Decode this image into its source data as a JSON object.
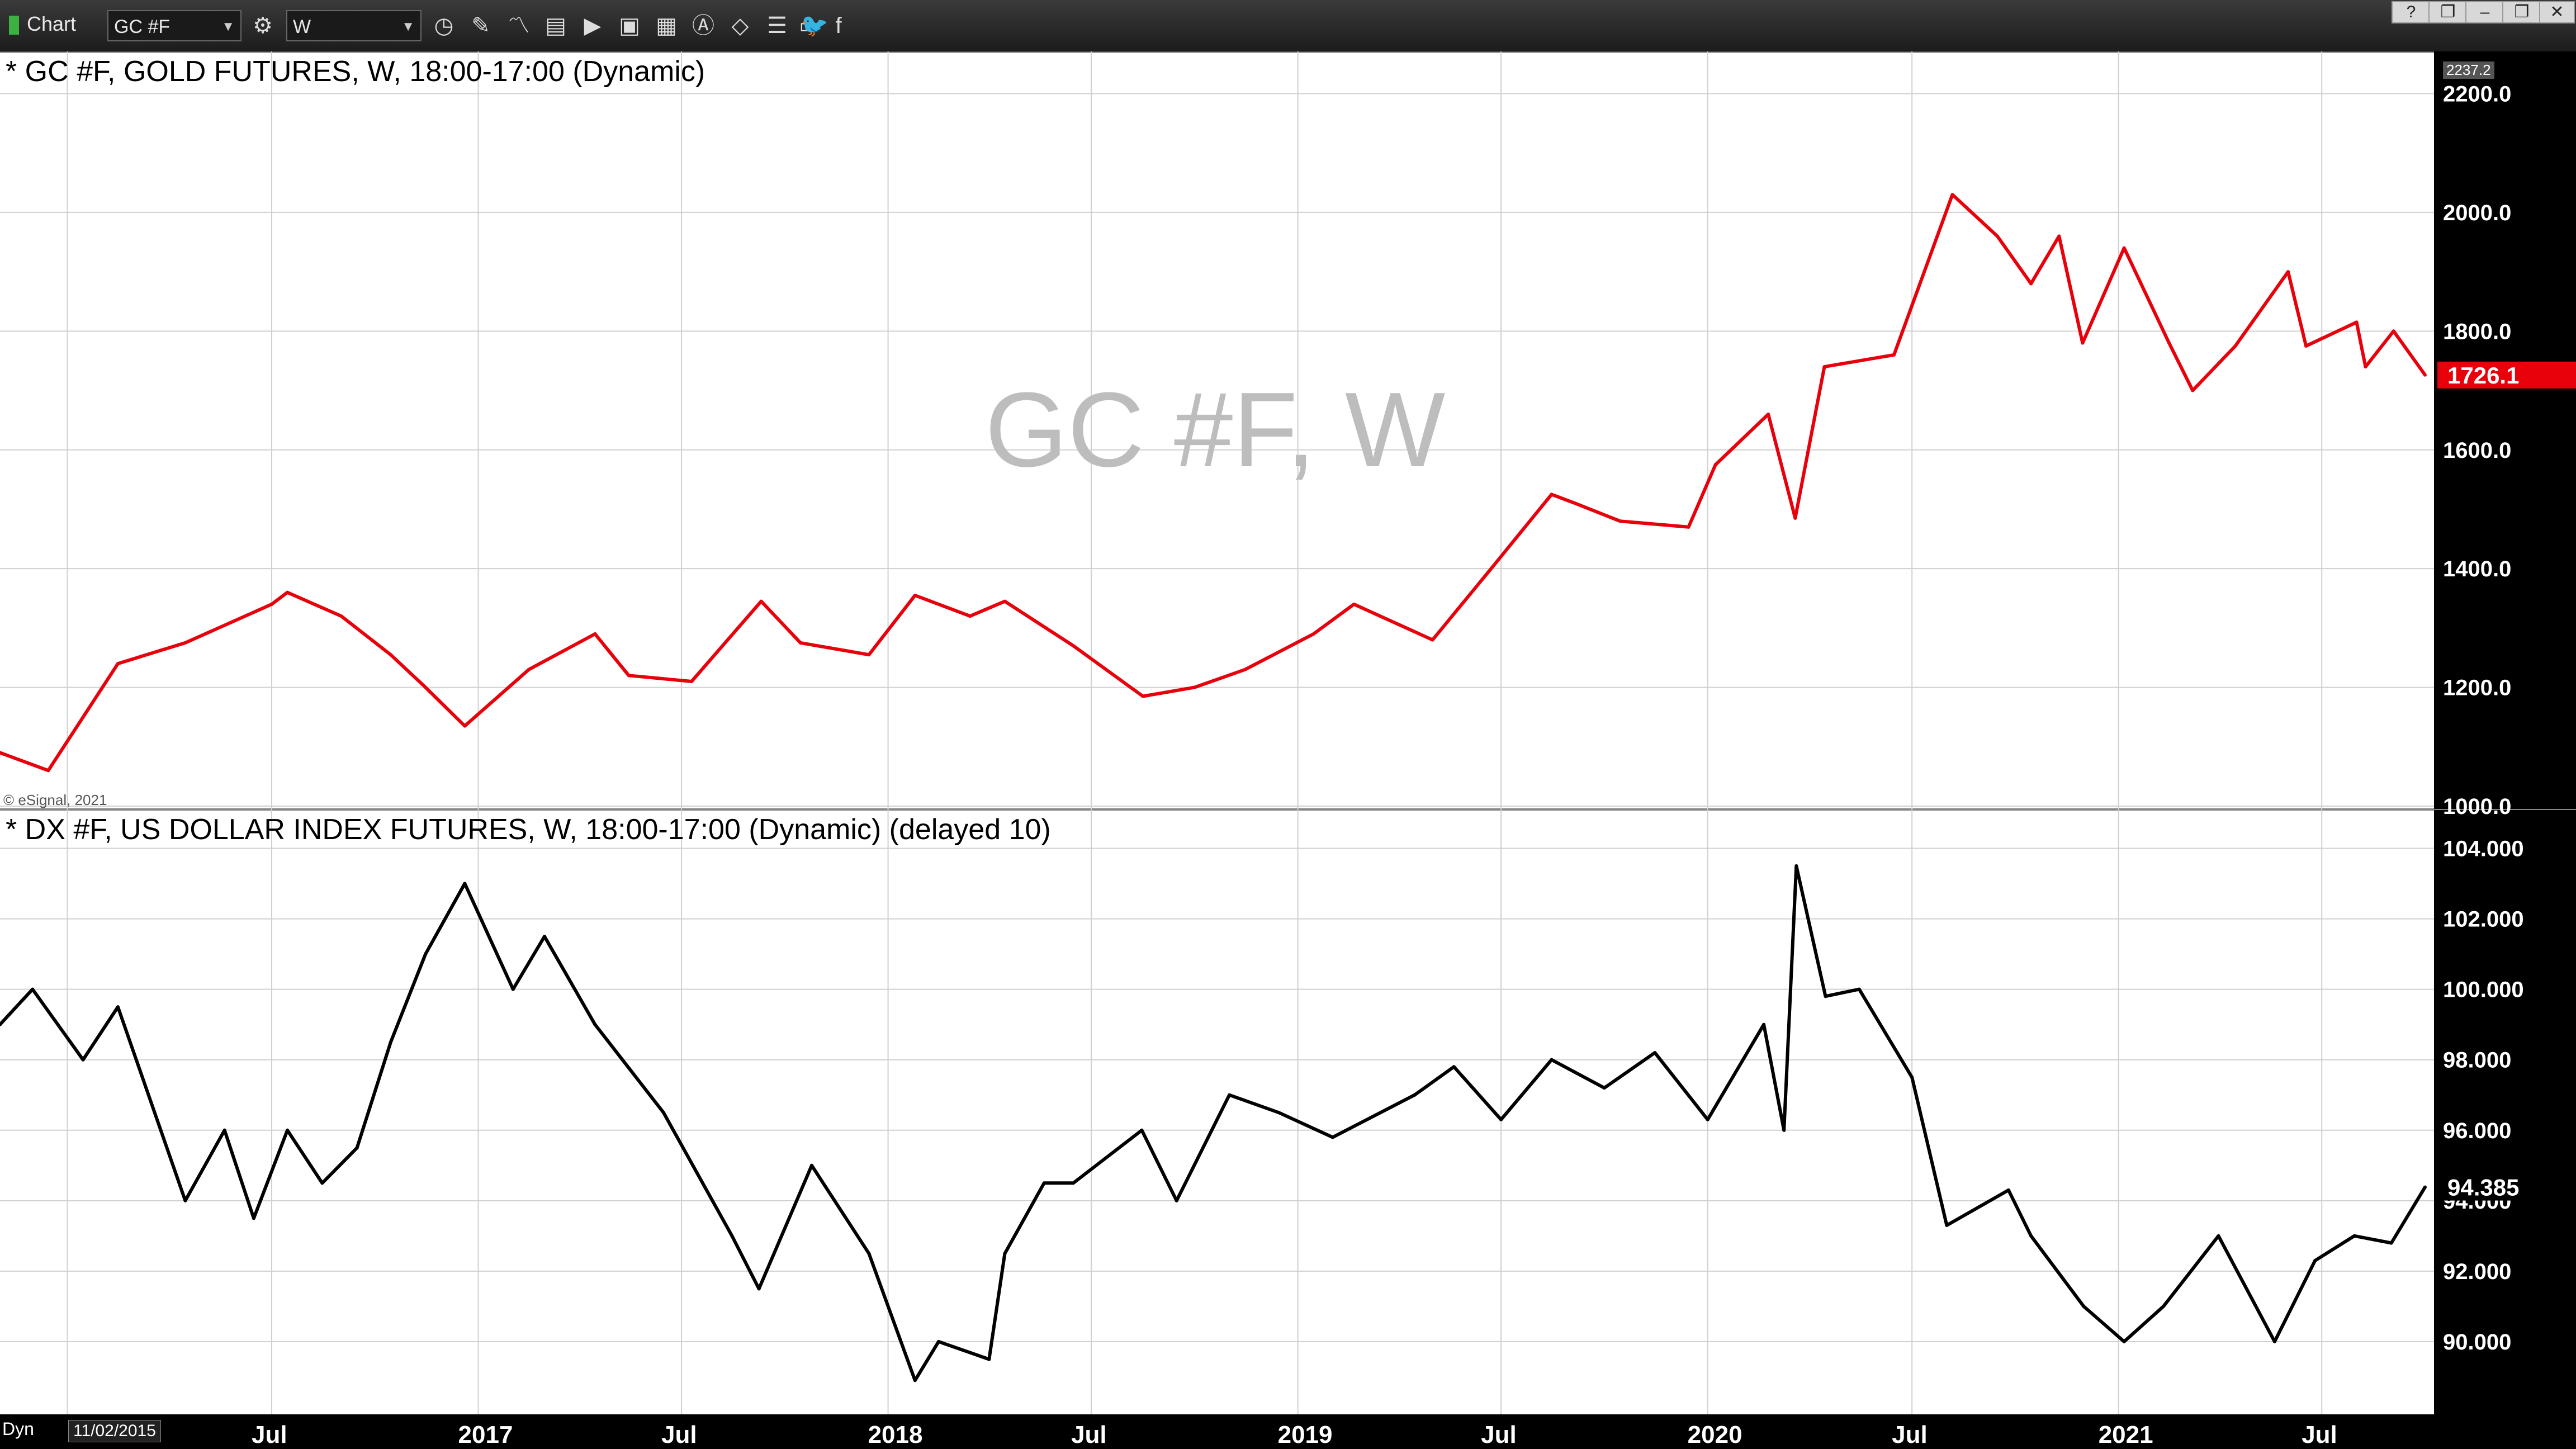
{
  "window": {
    "title": "Chart",
    "symbol": "GC #F",
    "interval": "W",
    "window_buttons": [
      "?",
      "❐",
      "–",
      "❐",
      "✕"
    ]
  },
  "toolbar": {
    "icons": [
      "settings-icon",
      "clock-icon",
      "pencil-icon",
      "line-chart-icon",
      "quote-icon",
      "play-icon",
      "time-sales-icon",
      "news-icon",
      "analyze-icon",
      "tag-icon",
      "list-icon",
      "chat-icon",
      "twitter-icon",
      "facebook-icon"
    ]
  },
  "colors": {
    "gold_line": "#e8000b",
    "dollar_line": "#000000",
    "gold_price_tag": "#e8000b",
    "axis_bg": "#000000"
  },
  "gold_panel": {
    "title": "* GC #F, GOLD FUTURES, W, 18:00-17:00 (Dynamic)",
    "watermark": "GC #F, W",
    "copyright": "© eSignal, 2021",
    "top_value_tag": "2237.2",
    "last_price": "1726.1",
    "y_ticks": [
      "2200.0",
      "2000.0",
      "1800.0",
      "1600.0",
      "1400.0",
      "1200.0",
      "1000.0"
    ]
  },
  "dollar_panel": {
    "title": "* DX #F, US DOLLAR INDEX FUTURES, W, 18:00-17:00 (Dynamic) (delayed 10)",
    "last_price": "94.385",
    "y_ticks": [
      "104.000",
      "102.000",
      "100.000",
      "98.000",
      "96.000",
      "94.000",
      "92.000",
      "90.000"
    ]
  },
  "x_axis": {
    "left_label": "Dyn",
    "start_date": "11/02/2015",
    "ticks": [
      "Jul",
      "2017",
      "Jul",
      "2018",
      "Jul",
      "2019",
      "Jul",
      "2020",
      "Jul",
      "2021",
      "Jul"
    ]
  },
  "chart_data": [
    {
      "type": "line",
      "title": "* GC #F, GOLD FUTURES, W, 18:00-17:00 (Dynamic)",
      "ylim": [
        1000,
        2237.2
      ],
      "x": [
        "2015-11-02",
        "2015-12-15",
        "2016-02-15",
        "2016-04-15",
        "2016-07-01",
        "2016-07-15",
        "2016-09-01",
        "2016-10-15",
        "2016-11-15",
        "2016-12-20",
        "2017-02-15",
        "2017-04-15",
        "2017-05-15",
        "2017-07-10",
        "2017-09-10",
        "2017-10-15",
        "2017-12-15",
        "2018-01-25",
        "2018-03-15",
        "2018-04-15",
        "2018-06-15",
        "2018-08-16",
        "2018-10-01",
        "2018-11-15",
        "2019-01-15",
        "2019-02-20",
        "2019-05-01",
        "2019-06-20",
        "2019-08-15",
        "2019-09-05",
        "2019-10-15",
        "2019-12-15",
        "2020-01-08",
        "2020-02-24",
        "2020-03-19",
        "2020-04-14",
        "2020-06-15",
        "2020-08-06",
        "2020-09-15",
        "2020-10-15",
        "2020-11-09",
        "2020-11-30",
        "2021-01-06",
        "2021-02-15",
        "2021-03-08",
        "2021-04-15",
        "2021-06-01",
        "2021-06-17",
        "2021-08-01",
        "2021-08-09",
        "2021-09-03",
        "2021-10-01"
      ],
      "series": [
        {
          "values": [
            1090,
            1060,
            1240,
            1275,
            1340,
            1360,
            1320,
            1255,
            1200,
            1135,
            1230,
            1290,
            1220,
            1210,
            1345,
            1275,
            1255,
            1355,
            1320,
            1345,
            1270,
            1185,
            1200,
            1230,
            1290,
            1340,
            1280,
            1395,
            1525,
            1510,
            1480,
            1470,
            1575,
            1660,
            1485,
            1740,
            1760,
            2030,
            1960,
            1880,
            1960,
            1780,
            1940,
            1780,
            1700,
            1775,
            1900,
            1775,
            1815,
            1740,
            1800,
            1726.1
          ]
        }
      ]
    },
    {
      "type": "line",
      "title": "* DX #F, US DOLLAR INDEX FUTURES, W, 18:00-17:00 (Dynamic) (delayed 10)",
      "ylim": [
        88.0,
        104.5
      ],
      "x": [
        "2015-11-02",
        "2015-12-01",
        "2016-01-15",
        "2016-02-15",
        "2016-04-15",
        "2016-05-20",
        "2016-06-15",
        "2016-07-15",
        "2016-08-15",
        "2016-09-15",
        "2016-10-15",
        "2016-11-15",
        "2016-12-20",
        "2017-02-01",
        "2017-03-01",
        "2017-04-15",
        "2017-06-15",
        "2017-08-15",
        "2017-09-08",
        "2017-10-25",
        "2017-12-15",
        "2018-01-25",
        "2018-02-15",
        "2018-04-01",
        "2018-04-15",
        "2018-05-20",
        "2018-06-15",
        "2018-08-15",
        "2018-09-15",
        "2018-11-01",
        "2018-12-15",
        "2019-02-01",
        "2019-04-15",
        "2019-05-20",
        "2019-07-01",
        "2019-08-15",
        "2019-10-01",
        "2019-11-15",
        "2020-01-01",
        "2020-02-20",
        "2020-03-09",
        "2020-03-20",
        "2020-04-15",
        "2020-05-15",
        "2020-07-01",
        "2020-08-01",
        "2020-09-25",
        "2020-10-15",
        "2020-12-01",
        "2021-01-06",
        "2021-02-10",
        "2021-03-31",
        "2021-05-20",
        "2021-06-25",
        "2021-07-30",
        "2021-09-01",
        "2021-10-01"
      ],
      "series": [
        {
          "values": [
            99.0,
            100.0,
            98.0,
            99.5,
            94.0,
            96.0,
            93.5,
            96.0,
            94.5,
            95.5,
            98.5,
            101.0,
            103.0,
            100.0,
            101.5,
            99.0,
            96.5,
            93.0,
            91.5,
            95.0,
            92.5,
            88.9,
            90.0,
            89.5,
            92.5,
            94.5,
            94.5,
            96.0,
            94.0,
            97.0,
            96.5,
            95.8,
            97.0,
            97.8,
            96.3,
            98.0,
            97.2,
            98.2,
            96.3,
            99.0,
            96.0,
            103.5,
            99.8,
            100.0,
            97.5,
            93.3,
            94.3,
            93.0,
            91.0,
            90.0,
            91.0,
            93.0,
            90.0,
            92.3,
            93.0,
            92.8,
            94.385
          ]
        }
      ]
    }
  ]
}
